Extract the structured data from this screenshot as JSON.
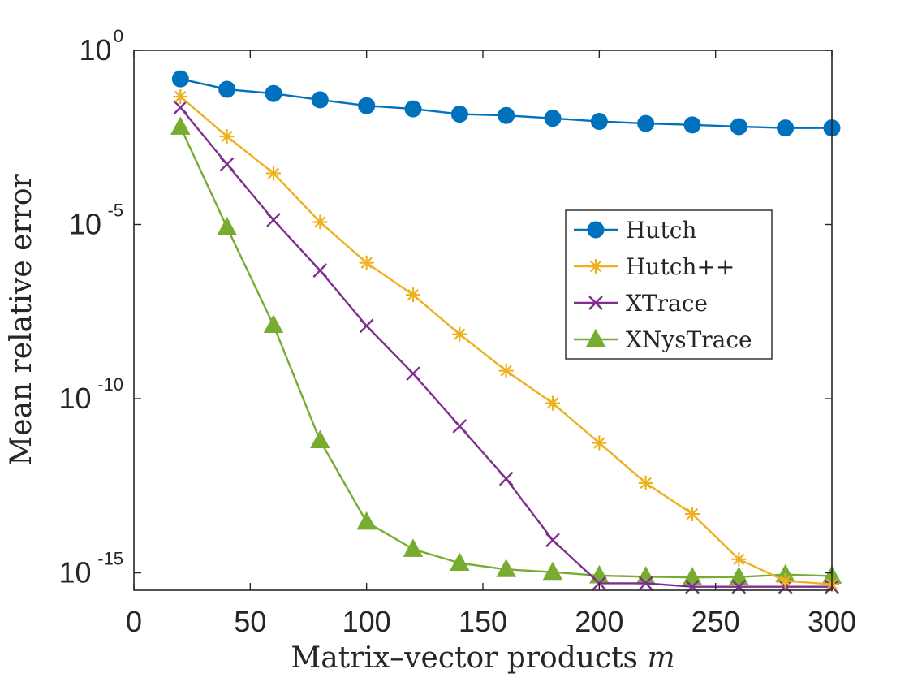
{
  "chart_data": {
    "type": "line",
    "title": "",
    "xlabel": "Matrix–vector products",
    "xlabel_var": "m",
    "ylabel": "Mean relative error",
    "y_scale": "log",
    "xlim": [
      0,
      300
    ],
    "ylim_exp": [
      -15.5,
      0
    ],
    "x_ticks": [
      0,
      50,
      100,
      150,
      200,
      250,
      300
    ],
    "y_ticks": [
      {
        "base": "10",
        "exp": "0",
        "value": 0
      },
      {
        "base": "10",
        "exp": "-5",
        "value": -5
      },
      {
        "base": "10",
        "exp": "-10",
        "value": -10
      },
      {
        "base": "10",
        "exp": "-15",
        "value": -15
      }
    ],
    "legend_position": "right, upper-middle",
    "x": [
      20,
      40,
      60,
      80,
      100,
      120,
      140,
      160,
      180,
      200,
      220,
      240,
      260,
      280,
      300
    ],
    "series": [
      {
        "name": "Hutch",
        "color": "#0072BD",
        "marker": "circle",
        "values_log10": [
          -0.82,
          -1.12,
          -1.24,
          -1.42,
          -1.59,
          -1.68,
          -1.83,
          -1.87,
          -1.95,
          -2.04,
          -2.1,
          -2.14,
          -2.19,
          -2.23,
          -2.23
        ]
      },
      {
        "name": "Hutch++",
        "color": "#EDB120",
        "marker": "asterisk",
        "values_log10": [
          -1.33,
          -2.47,
          -3.53,
          -4.93,
          -6.1,
          -7.02,
          -8.15,
          -9.2,
          -10.13,
          -11.27,
          -12.42,
          -13.31,
          -14.61,
          -15.23,
          -15.33
        ]
      },
      {
        "name": "XTrace",
        "color": "#7E2F8E",
        "marker": "x",
        "values_log10": [
          -1.64,
          -3.27,
          -4.87,
          -6.32,
          -7.91,
          -9.28,
          -10.79,
          -12.3,
          -14.06,
          -15.3,
          -15.3,
          -15.4,
          -15.4,
          -15.4,
          -15.4
        ]
      },
      {
        "name": "XNysTrace",
        "color": "#77AC30",
        "marker": "triangle",
        "values_log10": [
          -2.2,
          -5.08,
          -7.89,
          -11.2,
          -13.54,
          -14.32,
          -14.72,
          -14.9,
          -14.98,
          -15.08,
          -15.11,
          -15.13,
          -15.12,
          -15.05,
          -15.09
        ]
      }
    ]
  }
}
